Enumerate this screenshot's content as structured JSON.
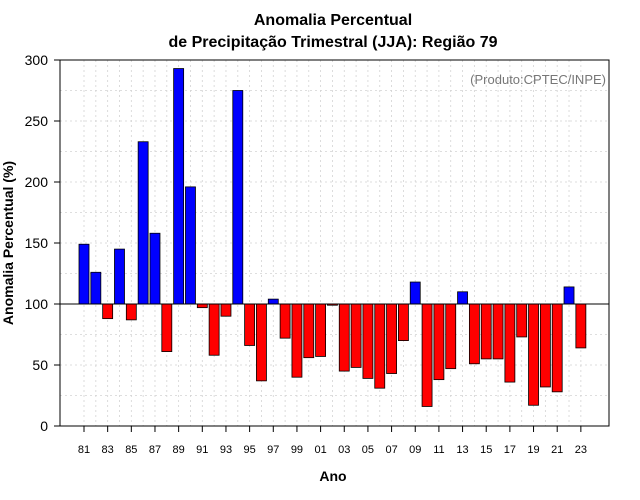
{
  "chart_data": {
    "type": "bar",
    "title": "Anomalia Percentual",
    "subtitle": "de Precipitação Trimestral (JJA): Região 79",
    "xlabel": "Ano",
    "ylabel": "Anomalia Percentual (%)",
    "credit": "(Produto:CPTEC/INPE)",
    "baseline": 100,
    "ylim": [
      0,
      300
    ],
    "yticks": [
      "0",
      "50",
      "100",
      "150",
      "200",
      "250",
      "300"
    ],
    "grid": true,
    "colors": {
      "above": "#0000ff",
      "below": "#ff0000",
      "edge": "#000000",
      "grid": "#d3d3d3"
    },
    "categories": [
      "81",
      "82",
      "83",
      "84",
      "85",
      "86",
      "87",
      "88",
      "89",
      "90",
      "91",
      "92",
      "93",
      "94",
      "95",
      "96",
      "97",
      "98",
      "99",
      "00",
      "01",
      "02",
      "03",
      "04",
      "05",
      "06",
      "07",
      "08",
      "09",
      "10",
      "11",
      "12",
      "13",
      "14",
      "15",
      "16",
      "17",
      "18",
      "19",
      "20",
      "21",
      "22",
      "23"
    ],
    "tick_labels": [
      "81",
      "83",
      "85",
      "87",
      "89",
      "91",
      "93",
      "95",
      "97",
      "99",
      "01",
      "03",
      "05",
      "07",
      "09",
      "11",
      "13",
      "15",
      "17",
      "19",
      "21",
      "23"
    ],
    "values": [
      149,
      126,
      88,
      145,
      87,
      233,
      158,
      61,
      293,
      196,
      97,
      58,
      90,
      275,
      66,
      37,
      104,
      72,
      40,
      56,
      57,
      99,
      45,
      48,
      39,
      31,
      43,
      70,
      118,
      16,
      38,
      47,
      110,
      51,
      55,
      55,
      36,
      73,
      17,
      32,
      28,
      114,
      64
    ]
  }
}
